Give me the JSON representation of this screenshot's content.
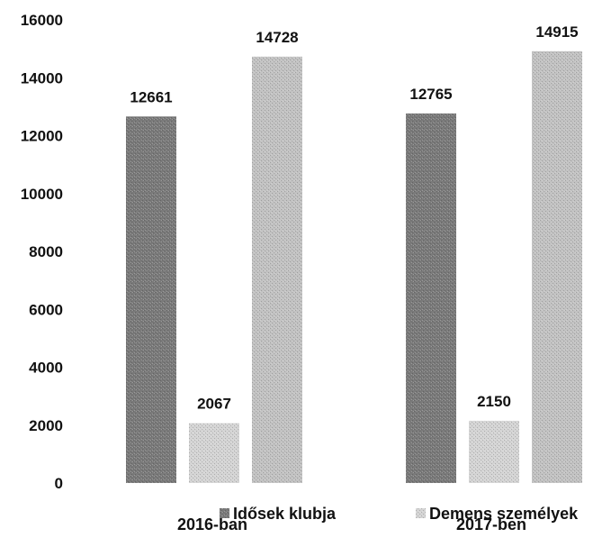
{
  "chart_data": {
    "type": "bar",
    "categories": [
      "2016-ban",
      "2017-ben"
    ],
    "series": [
      {
        "name": "Idősek klubja",
        "values": [
          12661,
          12765
        ],
        "color": "#7a7a7a"
      },
      {
        "name": "Demens személyek",
        "values": [
          2067,
          2150
        ],
        "color": "#d4d4d4"
      },
      {
        "name": "",
        "values": [
          14728,
          14915
        ],
        "color": "#c2c2c2"
      }
    ],
    "title": "",
    "xlabel": "",
    "ylabel": "",
    "ylim": [
      0,
      16000
    ],
    "yticks": [
      "0",
      "2000",
      "4000",
      "6000",
      "8000",
      "10000",
      "12000",
      "14000",
      "16000"
    ],
    "grid": false,
    "legend": "bottom"
  }
}
